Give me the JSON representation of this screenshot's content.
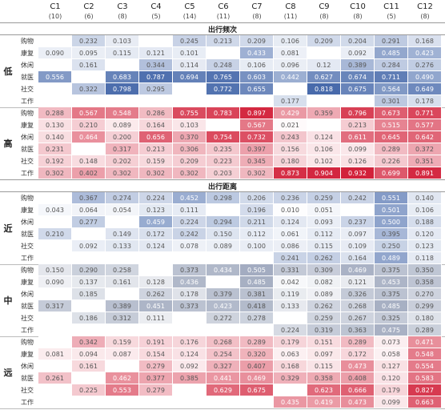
{
  "columns": [
    {
      "name": "C1",
      "count": "(10)"
    },
    {
      "name": "C2",
      "count": "(6)"
    },
    {
      "name": "C3",
      "count": "(8)"
    },
    {
      "name": "C4",
      "count": "(5)"
    },
    {
      "name": "C5",
      "count": "(14)"
    },
    {
      "name": "C6",
      "count": "(11)"
    },
    {
      "name": "C7",
      "count": "(8)"
    },
    {
      "name": "C8",
      "count": "(11)"
    },
    {
      "name": "C9",
      "count": "(8)"
    },
    {
      "name": "C10",
      "count": "(8)"
    },
    {
      "name": "C11",
      "count": "(5)"
    },
    {
      "name": "C12",
      "count": "(8)"
    }
  ],
  "sections": [
    {
      "title": "出行频次",
      "groups": [
        {
          "label": "低",
          "color": "#2f56a0",
          "rows": [
            {
              "label": "购物",
              "cells": [
                null,
                "0.232",
                "0.103",
                null,
                "0.245",
                "0.213",
                "0.209",
                "0.106",
                "0.209",
                "0.204",
                "0.291",
                "0.168"
              ]
            },
            {
              "label": "康复",
              "cells": [
                "0.090",
                "0.095",
                "0.115",
                "0.121",
                "0.101",
                null,
                "0.433",
                "0.081",
                null,
                "0.092",
                "0.485",
                "0.423"
              ]
            },
            {
              "label": "休闲",
              "cells": [
                null,
                "0.161",
                null,
                "0.344",
                "0.114",
                "0.248",
                "0.106",
                "0.096",
                "0.12",
                "0.389",
                "0.284",
                "0.276"
              ]
            },
            {
              "label": "就医",
              "cells": [
                "0.556",
                null,
                "0.683",
                "0.787",
                "0.694",
                "0.765",
                "0.603",
                "0.442",
                "0.627",
                "0.674",
                "0.711",
                "0.490"
              ]
            },
            {
              "label": "社交",
              "cells": [
                null,
                "0.322",
                "0.798",
                "0.295",
                null,
                "0.772",
                "0.655",
                null,
                "0.818",
                "0.675",
                "0.564",
                "0.649"
              ]
            },
            {
              "label": "工作",
              "cells": [
                null,
                null,
                null,
                null,
                null,
                null,
                null,
                "0.177",
                null,
                null,
                "0.301",
                "0.178"
              ]
            }
          ]
        },
        {
          "label": "高",
          "color": "#d2213a",
          "rows": [
            {
              "label": "购物",
              "cells": [
                "0.288",
                "0.567",
                "0.548",
                "0.286",
                "0.755",
                "0.783",
                "0.897",
                "0.429",
                "0.359",
                "0.796",
                "0.673",
                "0.771"
              ]
            },
            {
              "label": "康复",
              "cells": [
                "0.130",
                "0.210",
                "0.089",
                "0.164",
                "0.103",
                null,
                "0.567",
                "0.021",
                null,
                "0.213",
                "0.515",
                "0.577"
              ]
            },
            {
              "label": "休闲",
              "cells": [
                "0.140",
                "0.464",
                "0.200",
                "0.656",
                "0.370",
                "0.754",
                "0.732",
                "0.243",
                "0.124",
                "0.611",
                "0.645",
                "0.642"
              ]
            },
            {
              "label": "就医",
              "cells": [
                "0.231",
                null,
                "0.317",
                "0.213",
                "0.306",
                "0.235",
                "0.397",
                "0.156",
                "0.106",
                "0.099",
                "0.289",
                "0.372"
              ]
            },
            {
              "label": "社交",
              "cells": [
                "0.192",
                "0.148",
                "0.202",
                "0.159",
                "0.209",
                "0.223",
                "0.345",
                "0.180",
                "0.102",
                "0.126",
                "0.226",
                "0.351"
              ]
            },
            {
              "label": "工作",
              "cells": [
                "0.302",
                "0.402",
                "0.302",
                "0.302",
                "0.302",
                "0.203",
                "0.302",
                "0.873",
                "0.904",
                "0.932",
                "0.699",
                "0.891"
              ]
            }
          ]
        }
      ]
    },
    {
      "title": "出行距离",
      "groups": [
        {
          "label": "近",
          "color": "#2f56a0",
          "rows": [
            {
              "label": "购物",
              "cells": [
                null,
                "0.367",
                "0.274",
                "0.224",
                "0.452",
                "0.298",
                "0.206",
                "0.236",
                "0.259",
                "0.242",
                "0.551",
                "0.140"
              ]
            },
            {
              "label": "康复",
              "cells": [
                "0.043",
                "0.064",
                "0.054",
                "0.123",
                "0.111",
                null,
                "0.196",
                "0.010",
                "0.051",
                null,
                "0.501",
                "0.106"
              ]
            },
            {
              "label": "休闲",
              "cells": [
                null,
                "0.277",
                null,
                "0.459",
                "0.224",
                "0.294",
                "0.211",
                "0.124",
                "0.093",
                "0.237",
                "0.500",
                "0.188"
              ]
            },
            {
              "label": "就医",
              "cells": [
                "0.210",
                null,
                "0.149",
                "0.172",
                "0.242",
                "0.150",
                "0.112",
                "0.061",
                "0.112",
                "0.097",
                "0.395",
                "0.120"
              ]
            },
            {
              "label": "社交",
              "cells": [
                null,
                "0.092",
                "0.133",
                "0.124",
                "0.078",
                "0.089",
                "0.100",
                "0.086",
                "0.115",
                "0.109",
                "0.250",
                "0.123"
              ]
            },
            {
              "label": "工作",
              "cells": [
                null,
                null,
                null,
                null,
                null,
                null,
                null,
                "0.241",
                "0.262",
                "0.164",
                "0.489",
                "0.118"
              ]
            }
          ]
        },
        {
          "label": "中",
          "color": "#56678c",
          "rows": [
            {
              "label": "购物",
              "cells": [
                "0.150",
                "0.290",
                "0.258",
                null,
                "0.373",
                "0.434",
                "0.505",
                "0.331",
                "0.309",
                "0.469",
                "0.375",
                "0.350"
              ]
            },
            {
              "label": "康复",
              "cells": [
                "0.090",
                "0.137",
                "0.161",
                "0.128",
                "0.436",
                null,
                "0.485",
                "0.042",
                "0.082",
                "0.121",
                "0.453",
                "0.358"
              ]
            },
            {
              "label": "休闲",
              "cells": [
                null,
                "0.185",
                null,
                "0.262",
                "0.178",
                "0.379",
                "0.381",
                "0.119",
                "0.089",
                "0.326",
                "0.375",
                "0.270"
              ]
            },
            {
              "label": "就医",
              "cells": [
                "0.317",
                null,
                "0.389",
                "0.451",
                "0.373",
                "0.423",
                "0.418",
                "0.133",
                "0.262",
                "0.268",
                "0.485",
                "0.299"
              ]
            },
            {
              "label": "社交",
              "cells": [
                null,
                "0.186",
                "0.312",
                "0.111",
                null,
                "0.272",
                "0.278",
                null,
                "0.259",
                "0.267",
                "0.325",
                "0.180"
              ]
            },
            {
              "label": "工作",
              "cells": [
                null,
                null,
                null,
                null,
                null,
                null,
                null,
                "0.224",
                "0.319",
                "0.363",
                "0.475",
                "0.289"
              ]
            }
          ]
        },
        {
          "label": "远",
          "color": "#d2213a",
          "rows": [
            {
              "label": "购物",
              "cells": [
                null,
                "0.342",
                "0.159",
                "0.191",
                "0.176",
                "0.268",
                "0.289",
                "0.179",
                "0.151",
                "0.289",
                "0.073",
                "0.471"
              ]
            },
            {
              "label": "康复",
              "cells": [
                "0.081",
                "0.094",
                "0.087",
                "0.154",
                "0.124",
                "0.254",
                "0.320",
                "0.063",
                "0.097",
                "0.172",
                "0.058",
                "0.548"
              ]
            },
            {
              "label": "休闲",
              "cells": [
                null,
                "0.161",
                null,
                "0.279",
                "0.092",
                "0.327",
                "0.407",
                "0.168",
                "0.115",
                "0.473",
                "0.127",
                "0.554"
              ]
            },
            {
              "label": "就医",
              "cells": [
                "0.261",
                null,
                "0.462",
                "0.377",
                "0.385",
                "0.441",
                "0.469",
                "0.329",
                "0.358",
                "0.408",
                "0.120",
                "0.583"
              ]
            },
            {
              "label": "社交",
              "cells": [
                null,
                "0.225",
                "0.553",
                "0.279",
                null,
                "0.629",
                "0.675",
                null,
                "0.623",
                "0.666",
                "0.179",
                "0.827"
              ]
            },
            {
              "label": "工作",
              "cells": [
                null,
                null,
                null,
                null,
                null,
                null,
                null,
                "0.435",
                "0.419",
                "0.473",
                "0.099",
                "0.663"
              ]
            }
          ]
        }
      ]
    }
  ]
}
